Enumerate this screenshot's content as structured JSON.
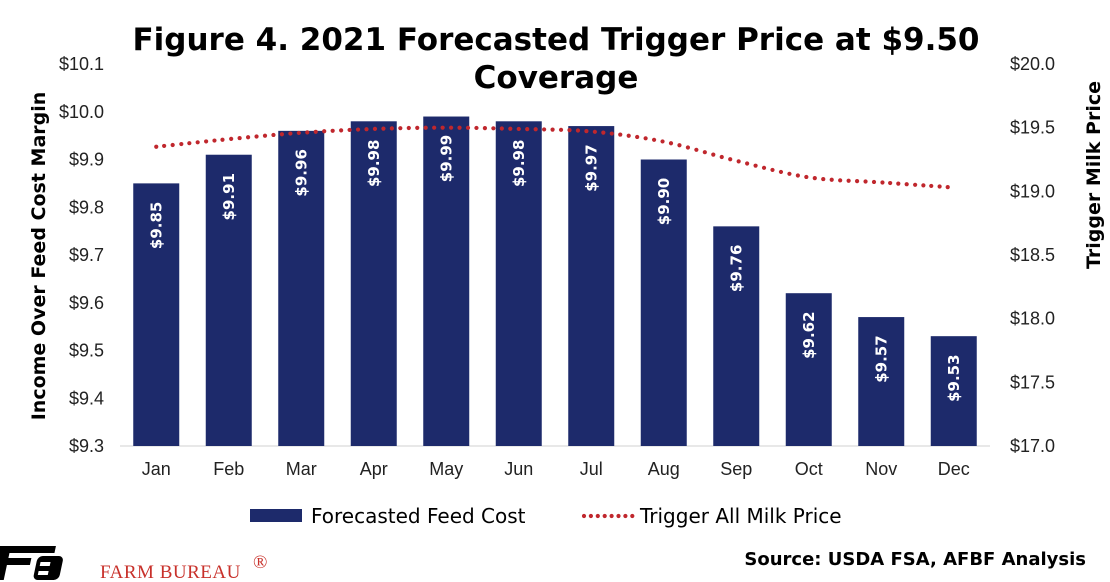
{
  "chart_data": {
    "type": "bar",
    "title": "Figure 4. 2021 Forecasted Trigger Price at $9.50",
    "title_line2": "Coverage",
    "categories": [
      "Jan",
      "Feb",
      "Mar",
      "Apr",
      "May",
      "Jun",
      "Jul",
      "Aug",
      "Sep",
      "Oct",
      "Nov",
      "Dec"
    ],
    "series": [
      {
        "name": "Forecasted Feed Cost",
        "type": "bar",
        "axis": "left",
        "color": "#1d2a6b",
        "values": [
          9.85,
          9.91,
          9.96,
          9.98,
          9.99,
          9.98,
          9.97,
          9.9,
          9.76,
          9.62,
          9.57,
          9.53
        ],
        "labels": [
          "$9.85",
          "$9.91",
          "$9.96",
          "$9.98",
          "$9.99",
          "$9.98",
          "$9.97",
          "$9.90",
          "$9.76",
          "$9.62",
          "$9.57",
          "$9.53"
        ]
      },
      {
        "name": "Trigger All Milk Price",
        "type": "line",
        "style": "dotted",
        "axis": "right",
        "color": "#c0272d",
        "values": [
          19.35,
          19.41,
          19.46,
          19.49,
          19.5,
          19.49,
          19.47,
          19.39,
          19.24,
          19.11,
          19.07,
          19.03
        ]
      }
    ],
    "ylabel": "Income Over Feed Cost Margin",
    "ylim": [
      9.3,
      10.1
    ],
    "y_ticks": [
      "$9.3",
      "$9.4",
      "$9.5",
      "$9.6",
      "$9.7",
      "$9.8",
      "$9.9",
      "$10.0",
      "$10.1"
    ],
    "y2label": "Trigger Milk Price",
    "y2lim": [
      17.0,
      20.0
    ],
    "y2_ticks": [
      "$17.0",
      "$17.5",
      "$18.0",
      "$18.5",
      "$19.0",
      "$19.5",
      "$20.0"
    ],
    "grid": false,
    "legend_position": "bottom"
  },
  "footer": {
    "brand_name": "FARM BUREAU",
    "brand_mark": "®",
    "source": "Source: USDA FSA, AFBF Analysis"
  }
}
